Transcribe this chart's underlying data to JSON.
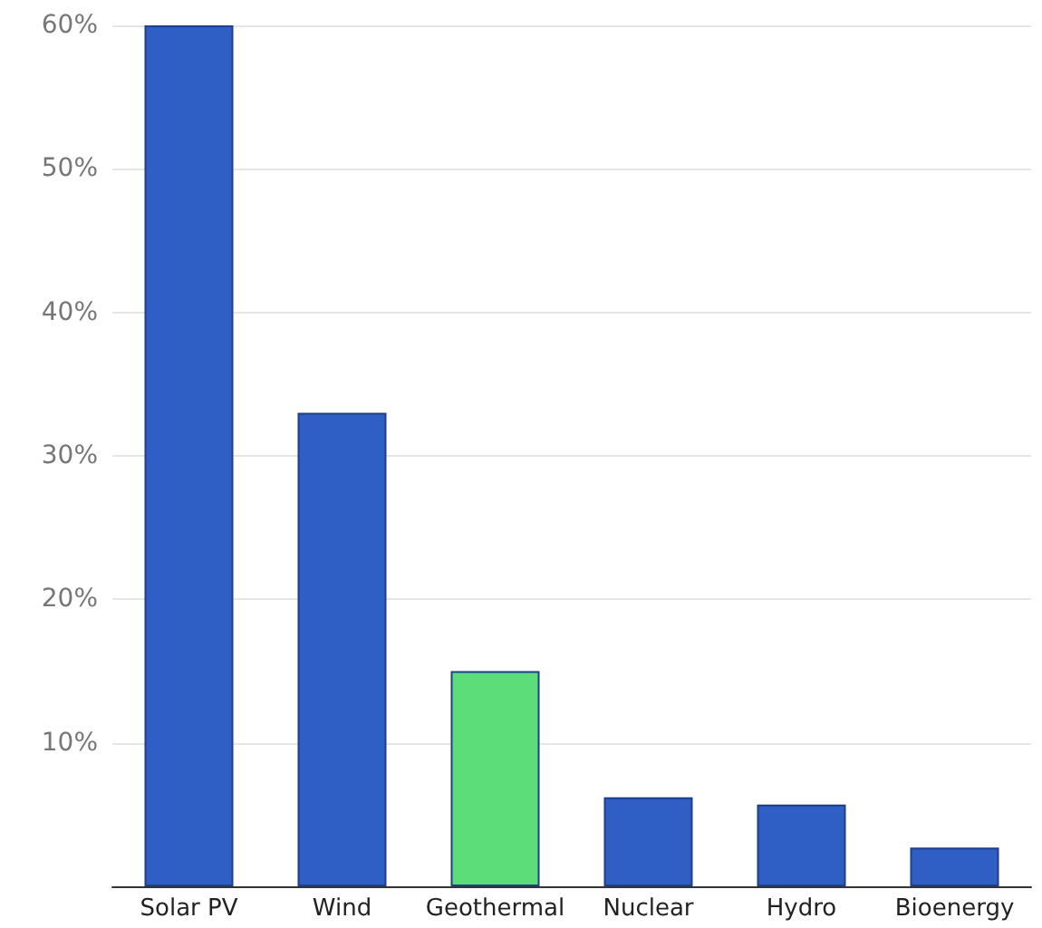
{
  "chart_data": {
    "type": "bar",
    "categories": [
      "Solar PV",
      "Wind",
      "Geothermal",
      "Nuclear",
      "Hydro",
      "Bioenergy"
    ],
    "values": [
      60,
      33,
      15,
      6.2,
      5.7,
      2.7
    ],
    "colors": [
      "#2f5ec4",
      "#2f5ec4",
      "#5ddc7a",
      "#2f5ec4",
      "#2f5ec4",
      "#2f5ec4"
    ],
    "ylim": [
      0,
      60
    ],
    "yticks": [
      {
        "value": 10,
        "label": "10%"
      },
      {
        "value": 20,
        "label": "20%"
      },
      {
        "value": 30,
        "label": "30%"
      },
      {
        "value": 40,
        "label": "40%"
      },
      {
        "value": 50,
        "label": "50%"
      },
      {
        "value": 60,
        "label": "60%"
      }
    ],
    "grid": "y"
  }
}
